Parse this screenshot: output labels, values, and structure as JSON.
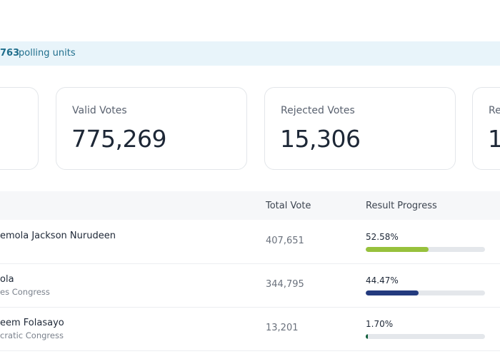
{
  "banner": {
    "count": "763",
    "text": "polling units"
  },
  "cards": [
    {
      "label": "Valid Votes",
      "value": "775,269"
    },
    {
      "label": "Rejected Votes",
      "value": "15,306"
    },
    {
      "label": "Re",
      "value": "1,"
    }
  ],
  "table": {
    "headers": [
      "Total Vote",
      "Result Progress"
    ],
    "rows": [
      {
        "name": "emola Jackson Nurudeen",
        "party": null,
        "votes": "407,651",
        "progress": 52.58,
        "progress_label": "52.58%",
        "color": "#97c13c"
      },
      {
        "name": "ola",
        "party": "es Congress",
        "votes": "344,795",
        "progress": 44.47,
        "progress_label": "44.47%",
        "color": "#233a7e"
      },
      {
        "name": "eem Folasayo",
        "party": "cratic Congress",
        "votes": "13,201",
        "progress": 1.7,
        "progress_label": "1.70%",
        "color": "#0f5e3a"
      }
    ]
  }
}
